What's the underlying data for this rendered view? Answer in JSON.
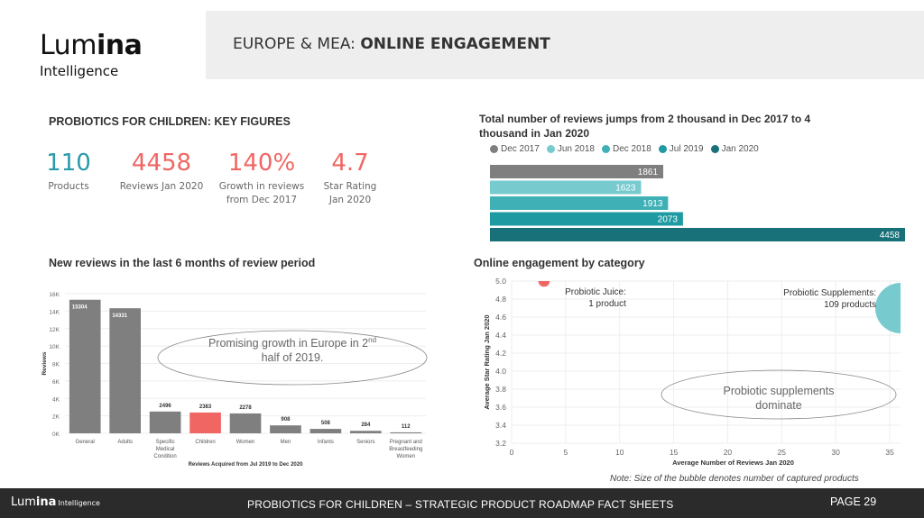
{
  "brand": {
    "name_light": "Lum",
    "name_bold": "ina",
    "sub": "Intelligence",
    "footer_sub": "Intelligence"
  },
  "header": {
    "title_prefix": "EUROPE & MEA:",
    "title_bold": "ONLINE ENGAGEMENT"
  },
  "key_figures": {
    "title": "PROBIOTICS FOR CHILDREN: KEY FIGURES",
    "items": [
      {
        "value": "110",
        "label_1": "Products",
        "label_2": "",
        "color": "#2a9aa8"
      },
      {
        "value": "4458",
        "label_1": "Reviews Jan 2020",
        "label_2": "",
        "color": "#f06663"
      },
      {
        "value": "140%",
        "label_1": "Growth in reviews",
        "label_2": "from Dec 2017",
        "color": "#f06663"
      },
      {
        "value": "4.7",
        "label_1": "Star Rating",
        "label_2": "Jan 2020",
        "color": "#f06663"
      }
    ]
  },
  "colors": {
    "grey": "#7f7f7f",
    "red": "#f06663",
    "teal_light": "#77cbcf"
  },
  "chart_data": [
    {
      "type": "bar",
      "orientation": "horizontal",
      "title": "Total number of reviews jumps from 2 thousand in Dec 2017  to 4 thousand in Jan 2020",
      "title_line_1": "Total number of reviews jumps from 2 thousand in Dec 2017  to 4",
      "title_line_2": "thousand in Jan 2020",
      "categories": [
        "Dec 2017",
        "Jun 2018",
        "Dec 2018",
        "Jul 2019",
        "Jan 2020"
      ],
      "values": [
        1861,
        1623,
        1913,
        2073,
        4458
      ],
      "colors": [
        "#7f7f7f",
        "#77cbcf",
        "#3fb0b6",
        "#1e9aa3",
        "#187078"
      ],
      "legend": "top",
      "xlim": [
        0,
        4458
      ]
    },
    {
      "type": "bar",
      "title": "New reviews in the last 6 months of review period",
      "xlabel": "Reviews Acquired from Jul 2019 to Dec 2020",
      "ylabel": "Reviews",
      "categories": [
        [
          "General"
        ],
        [
          "Adults"
        ],
        [
          "Specific",
          "Medical",
          "Condition"
        ],
        [
          "Children"
        ],
        [
          "Women"
        ],
        [
          "Men"
        ],
        [
          "Infants"
        ],
        [
          "Seniors"
        ],
        [
          "Pregnant and",
          "Breastfeeding",
          "Women"
        ]
      ],
      "values": [
        15304,
        14331,
        2496,
        2383,
        2278,
        908,
        508,
        284,
        112
      ],
      "highlight_index": 3,
      "ylim": [
        0,
        16000
      ],
      "yticks": [
        0,
        2000,
        4000,
        6000,
        8000,
        10000,
        12000,
        14000,
        16000
      ],
      "ytick_labels": [
        "0K",
        "2K",
        "4K",
        "6K",
        "8K",
        "10K",
        "12K",
        "14K",
        "16K"
      ],
      "annotation_line_1": "Promising growth in Europe in 2",
      "annotation_sup": "nd",
      "annotation_line_2": "half of 2019."
    },
    {
      "type": "scatter",
      "title": "Online engagement by category",
      "xlabel": "Average Number of Reviews Jan 2020",
      "ylabel": "Average Star Rating Jan 2020",
      "xlim": [
        0,
        36
      ],
      "ylim": [
        3.2,
        5.0
      ],
      "xticks": [
        0,
        5,
        10,
        15,
        20,
        25,
        30,
        35
      ],
      "yticks": [
        3.2,
        3.4,
        3.6,
        3.8,
        4.0,
        4.2,
        4.4,
        4.6,
        4.8,
        5.0
      ],
      "ytick_labels": [
        "3.2",
        "3.4",
        "3.6",
        "3.8",
        "4.0",
        "4.2",
        "4.4",
        "4.6",
        "4.8",
        "5.0"
      ],
      "points": [
        {
          "name": "Probiotic Juice",
          "label_1": "Probiotic Juice:",
          "label_2": "1 product",
          "x": 3,
          "y": 5.0,
          "products": 1,
          "color": "#f06663"
        },
        {
          "name": "Probiotic Supplements",
          "label_1": "Probiotic Supplements:",
          "label_2": "109 products",
          "x": 36,
          "y": 4.7,
          "products": 109,
          "color": "#77cbcf"
        }
      ],
      "annotation_line_1": "Probiotic supplements",
      "annotation_line_2": "dominate"
    }
  ],
  "note": "Note: Size of the bubble denotes number of captured products",
  "footer": {
    "text": "PROBIOTICS  FOR CHILDREN – STRATEGIC PRODUCT ROADMAP FACT SHEETS",
    "page": "PAGE 29"
  }
}
